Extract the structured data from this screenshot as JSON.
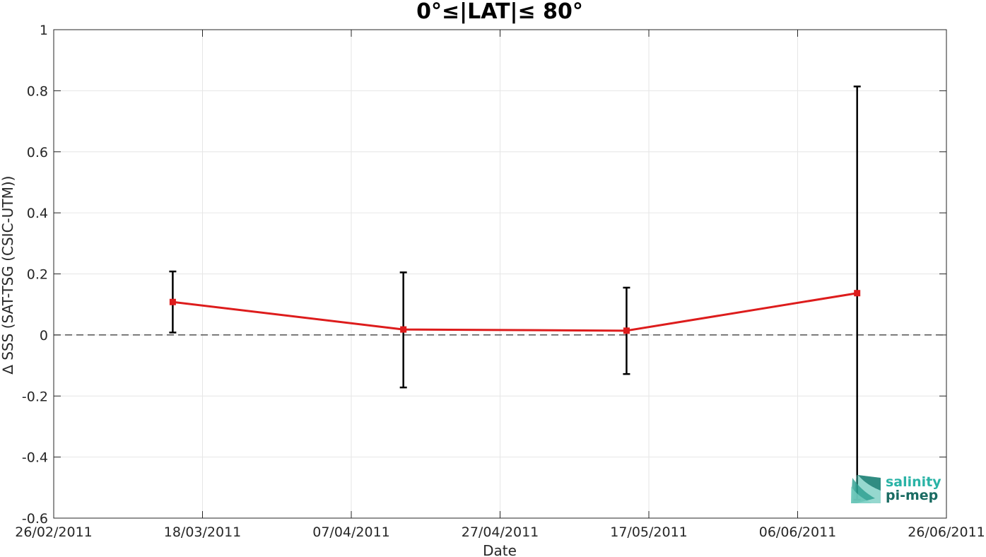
{
  "chart_data": {
    "type": "line",
    "title": "0°≤|LAT|≤ 80°",
    "xlabel": "Date",
    "ylabel": "∆ SSS (SAT-TSG (CSIC-UTM))",
    "xlim": [
      "26/02/2011",
      "26/06/2011"
    ],
    "ylim": [
      -0.6,
      1
    ],
    "x_ticks": [
      "26/02/2011",
      "18/03/2011",
      "07/04/2011",
      "27/04/2011",
      "17/05/2011",
      "06/06/2011",
      "26/06/2011"
    ],
    "y_ticks": [
      "-0.6",
      "-0.4",
      "-0.2",
      "0",
      "0.2",
      "0.4",
      "0.6",
      "0.8",
      "1"
    ],
    "grid": true,
    "zero_line": {
      "value": 0,
      "style": "dashed"
    },
    "series": [
      {
        "color": "#dd1c1c",
        "error_bar_color": "#000000",
        "points": [
          {
            "x": "14/03/2011",
            "y": 0.108,
            "err_low": 0.008,
            "err_high": 0.208
          },
          {
            "x": "14/04/2011",
            "y": 0.018,
            "err_low": -0.172,
            "err_high": 0.205
          },
          {
            "x": "14/05/2011",
            "y": 0.014,
            "err_low": -0.128,
            "err_high": 0.155
          },
          {
            "x": "14/06/2011",
            "y": 0.137,
            "err_low": -0.54,
            "err_high": 0.814
          }
        ]
      }
    ]
  },
  "logo": {
    "line1": "salinity",
    "line2": "pi-mep",
    "color1": "#2ab3a6",
    "color2": "#1a6b62"
  }
}
